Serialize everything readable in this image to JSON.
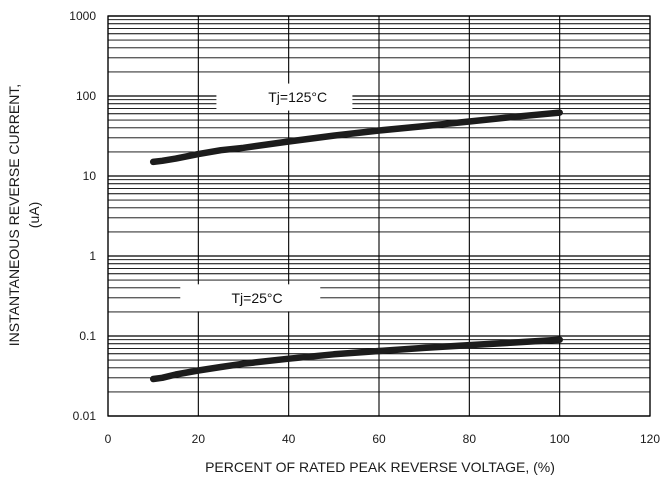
{
  "chart_data": {
    "type": "line",
    "xlabel": "PERCENT OF RATED PEAK REVERSE VOLTAGE, (%)",
    "ylabel_line1": "INSTANTANEOUS REVERSE CURRENT,",
    "ylabel_line2": "(uA)",
    "xlim": [
      0,
      120
    ],
    "ylim": [
      0.01,
      1000
    ],
    "yscale": "log",
    "grid": true,
    "x_ticks": [
      0,
      20,
      40,
      60,
      80,
      100,
      120
    ],
    "x_tick_labels": [
      "0",
      "20",
      "40",
      "60",
      "80",
      "100",
      "120"
    ],
    "y_ticks": [
      0.01,
      0.1,
      1,
      10,
      100,
      1000
    ],
    "y_tick_labels": [
      "0.01",
      "0.1",
      "1",
      "10",
      "100",
      "1000"
    ],
    "series": [
      {
        "name": "Tj=125°C",
        "x": [
          10,
          12,
          15,
          20,
          25,
          30,
          40,
          50,
          60,
          70,
          80,
          90,
          100
        ],
        "y": [
          15,
          15.5,
          16.5,
          18.8,
          21,
          22.5,
          27,
          32,
          37,
          42,
          48,
          55,
          62
        ]
      },
      {
        "name": "Tj=25°C",
        "x": [
          10,
          12,
          15,
          20,
          25,
          30,
          40,
          50,
          60,
          70,
          80,
          90,
          100
        ],
        "y": [
          0.029,
          0.03,
          0.033,
          0.037,
          0.041,
          0.045,
          0.052,
          0.059,
          0.065,
          0.071,
          0.077,
          0.083,
          0.09
        ]
      }
    ],
    "line_color": "#1c1c1c"
  }
}
